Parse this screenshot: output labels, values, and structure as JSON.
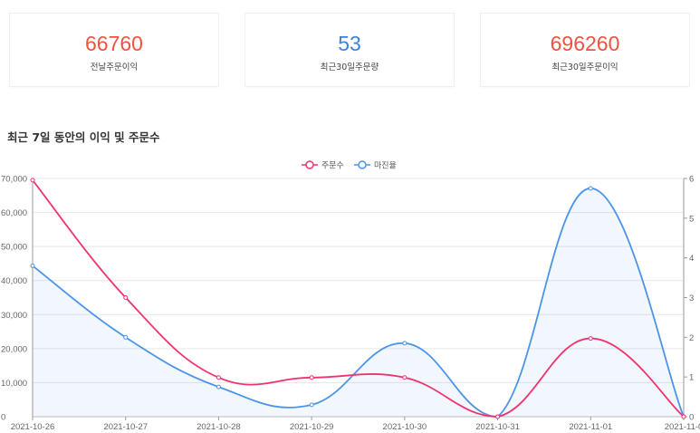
{
  "stats": [
    {
      "value": "66760",
      "label": "전날주문이익",
      "color": "#f0523f"
    },
    {
      "value": "53",
      "label": "최근30일주문량",
      "color": "#3b84d8"
    },
    {
      "value": "696260",
      "label": "최근30일주문이익",
      "color": "#f0523f"
    }
  ],
  "section_title": "최근 7일 동안의 이익 및 주문수",
  "chart_data": {
    "type": "line",
    "categories": [
      "2021-10-26",
      "2021-10-27",
      "2021-10-28",
      "2021-10-29",
      "2021-10-30",
      "2021-10-31",
      "2021-11-01",
      "2021-11-0"
    ],
    "series": [
      {
        "name": "주문수",
        "axis": "left",
        "color": "#f0336e",
        "area": false,
        "values": [
          69500,
          35000,
          11500,
          11500,
          11500,
          0,
          23000,
          0
        ]
      },
      {
        "name": "마진율",
        "axis": "right",
        "color": "#4c94e8",
        "area": true,
        "values": [
          3.8,
          2.0,
          0.75,
          0.3,
          1.85,
          0,
          5.75,
          0
        ]
      }
    ],
    "ylim_left": [
      0,
      70000
    ],
    "yticks_left": [
      "0",
      "10,000",
      "20,000",
      "30,000",
      "40,000",
      "50,000",
      "60,000",
      "70,000"
    ],
    "ylim_right": [
      0,
      6
    ],
    "yticks_right": [
      "0",
      "1",
      "2",
      "3",
      "4",
      "5",
      "6"
    ],
    "legend_position": "top-center",
    "grid": true
  }
}
